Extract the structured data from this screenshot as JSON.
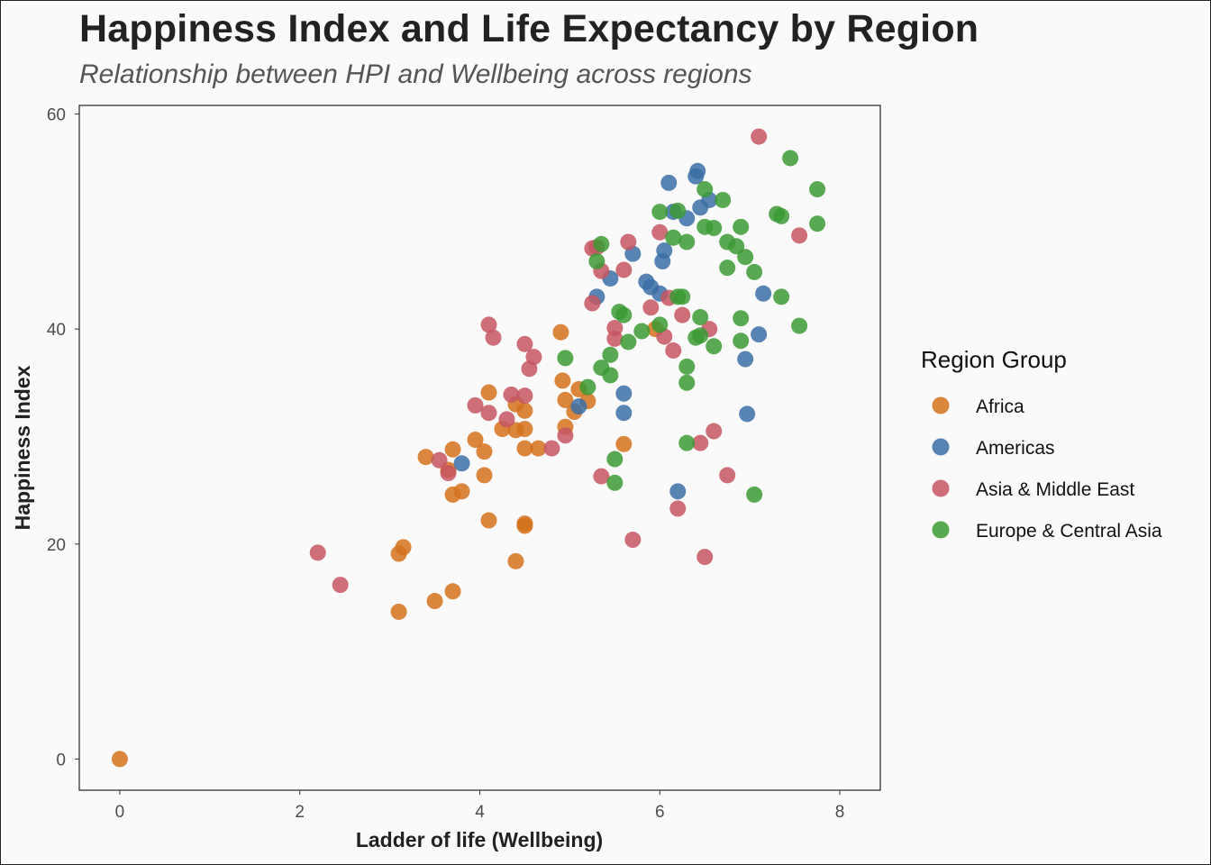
{
  "title": "Happiness Index and Life Expectancy by Region",
  "subtitle": "Relationship between HPI and Wellbeing across regions",
  "chart_data": {
    "type": "scatter",
    "title": "Happiness Index and Life Expectancy by Region",
    "subtitle": "Relationship between HPI and Wellbeing across regions",
    "xlabel": "Ladder of life (Wellbeing)",
    "ylabel": "Happiness Index",
    "xlim": [
      -0.45,
      8.45
    ],
    "ylim": [
      -2.9,
      60.8
    ],
    "x_ticks": [
      0,
      2,
      4,
      6,
      8
    ],
    "y_ticks": [
      0,
      20,
      40,
      60
    ],
    "grid": false,
    "legend": {
      "title": "Region Group",
      "position": "right"
    },
    "series": [
      {
        "name": "Africa",
        "color": "#d4711b",
        "points": [
          [
            0.0,
            0.0
          ],
          [
            3.1,
            19.1
          ],
          [
            3.15,
            19.7
          ],
          [
            3.1,
            13.7
          ],
          [
            3.5,
            14.7
          ],
          [
            3.7,
            15.6
          ],
          [
            3.4,
            28.1
          ],
          [
            3.65,
            26.9
          ],
          [
            3.7,
            28.8
          ],
          [
            3.7,
            24.6
          ],
          [
            3.8,
            24.9
          ],
          [
            3.95,
            29.7
          ],
          [
            4.05,
            28.6
          ],
          [
            4.05,
            26.4
          ],
          [
            4.1,
            34.1
          ],
          [
            4.1,
            22.2
          ],
          [
            4.25,
            30.7
          ],
          [
            4.4,
            30.6
          ],
          [
            4.4,
            33.0
          ],
          [
            4.5,
            30.7
          ],
          [
            4.5,
            32.4
          ],
          [
            4.5,
            28.9
          ],
          [
            4.5,
            21.9
          ],
          [
            4.5,
            21.7
          ],
          [
            4.4,
            18.4
          ],
          [
            4.65,
            28.9
          ],
          [
            4.9,
            39.7
          ],
          [
            4.92,
            35.2
          ],
          [
            4.95,
            30.9
          ],
          [
            4.95,
            33.4
          ],
          [
            5.05,
            32.3
          ],
          [
            5.1,
            34.4
          ],
          [
            5.2,
            33.3
          ],
          [
            5.6,
            29.3
          ],
          [
            5.95,
            40.0
          ]
        ]
      },
      {
        "name": "Americas",
        "color": "#3a6ea5",
        "points": [
          [
            3.8,
            27.5
          ],
          [
            5.1,
            32.8
          ],
          [
            5.3,
            43.0
          ],
          [
            5.45,
            44.7
          ],
          [
            5.6,
            34.0
          ],
          [
            5.6,
            32.2
          ],
          [
            5.7,
            47.0
          ],
          [
            5.85,
            44.4
          ],
          [
            5.9,
            43.9
          ],
          [
            6.0,
            43.3
          ],
          [
            6.03,
            46.3
          ],
          [
            6.05,
            47.3
          ],
          [
            6.1,
            53.6
          ],
          [
            6.15,
            50.9
          ],
          [
            6.2,
            24.9
          ],
          [
            6.3,
            50.3
          ],
          [
            6.4,
            54.2
          ],
          [
            6.42,
            54.7
          ],
          [
            6.45,
            51.3
          ],
          [
            6.55,
            52.0
          ],
          [
            6.95,
            37.2
          ],
          [
            6.97,
            32.1
          ],
          [
            7.1,
            39.5
          ],
          [
            7.15,
            43.3
          ]
        ]
      },
      {
        "name": "Asia & Middle East",
        "color": "#c65561",
        "points": [
          [
            2.2,
            19.2
          ],
          [
            2.45,
            16.2
          ],
          [
            3.55,
            27.8
          ],
          [
            3.65,
            26.6
          ],
          [
            3.95,
            32.9
          ],
          [
            4.1,
            32.2
          ],
          [
            4.1,
            40.4
          ],
          [
            4.15,
            39.2
          ],
          [
            4.3,
            31.6
          ],
          [
            4.35,
            33.9
          ],
          [
            4.5,
            33.8
          ],
          [
            4.5,
            38.6
          ],
          [
            4.55,
            36.3
          ],
          [
            4.6,
            37.4
          ],
          [
            4.8,
            28.9
          ],
          [
            4.95,
            30.1
          ],
          [
            5.25,
            47.5
          ],
          [
            5.3,
            47.6
          ],
          [
            5.35,
            45.4
          ],
          [
            5.25,
            42.4
          ],
          [
            5.5,
            40.1
          ],
          [
            5.5,
            39.1
          ],
          [
            5.6,
            45.5
          ],
          [
            5.65,
            48.1
          ],
          [
            5.35,
            26.3
          ],
          [
            5.7,
            20.4
          ],
          [
            5.9,
            42.0
          ],
          [
            6.0,
            49.0
          ],
          [
            6.05,
            39.3
          ],
          [
            6.1,
            42.9
          ],
          [
            6.15,
            38.0
          ],
          [
            6.25,
            41.3
          ],
          [
            6.2,
            23.3
          ],
          [
            6.45,
            29.4
          ],
          [
            6.55,
            40.0
          ],
          [
            6.6,
            30.5
          ],
          [
            6.5,
            18.8
          ],
          [
            6.75,
            26.4
          ],
          [
            7.1,
            57.9
          ],
          [
            7.55,
            48.7
          ]
        ]
      },
      {
        "name": "Europe & Central Asia",
        "color": "#3b9a34",
        "points": [
          [
            4.95,
            37.3
          ],
          [
            5.2,
            34.6
          ],
          [
            5.3,
            46.3
          ],
          [
            5.35,
            47.9
          ],
          [
            5.35,
            36.4
          ],
          [
            5.45,
            35.7
          ],
          [
            5.45,
            37.6
          ],
          [
            5.5,
            27.9
          ],
          [
            5.5,
            25.7
          ],
          [
            5.55,
            41.6
          ],
          [
            5.6,
            41.3
          ],
          [
            5.65,
            38.8
          ],
          [
            5.8,
            39.8
          ],
          [
            6.0,
            50.9
          ],
          [
            6.0,
            40.4
          ],
          [
            6.15,
            48.5
          ],
          [
            6.2,
            51.0
          ],
          [
            6.2,
            43.0
          ],
          [
            6.25,
            43.0
          ],
          [
            6.3,
            48.1
          ],
          [
            6.3,
            36.5
          ],
          [
            6.3,
            35.0
          ],
          [
            6.3,
            29.4
          ],
          [
            6.4,
            39.2
          ],
          [
            6.45,
            41.1
          ],
          [
            6.45,
            39.4
          ],
          [
            6.5,
            49.5
          ],
          [
            6.5,
            53.0
          ],
          [
            6.6,
            49.4
          ],
          [
            6.6,
            38.4
          ],
          [
            6.7,
            52.0
          ],
          [
            6.75,
            48.1
          ],
          [
            6.75,
            45.7
          ],
          [
            6.85,
            47.7
          ],
          [
            6.9,
            49.5
          ],
          [
            6.9,
            41.0
          ],
          [
            6.9,
            38.9
          ],
          [
            6.95,
            46.7
          ],
          [
            7.05,
            45.3
          ],
          [
            7.05,
            24.6
          ],
          [
            7.3,
            50.7
          ],
          [
            7.35,
            50.5
          ],
          [
            7.35,
            43.0
          ],
          [
            7.45,
            55.9
          ],
          [
            7.55,
            40.3
          ],
          [
            7.75,
            53.0
          ],
          [
            7.75,
            49.8
          ]
        ]
      }
    ]
  }
}
